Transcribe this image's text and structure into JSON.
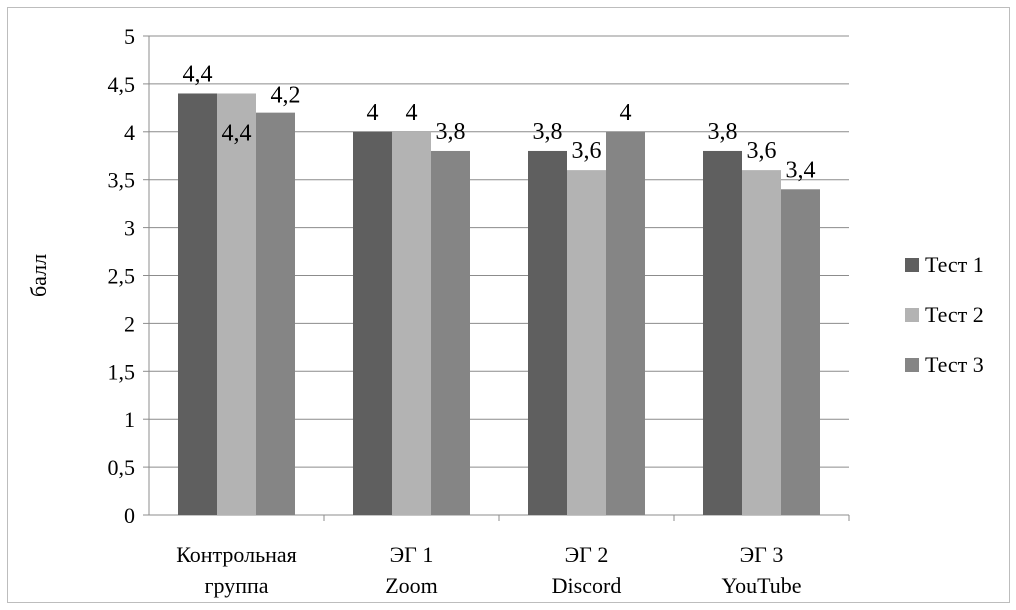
{
  "chart_data": {
    "type": "bar",
    "title": "",
    "xlabel": "",
    "ylabel": "балл",
    "ylim": [
      0,
      5
    ],
    "y_ticks": [
      "0",
      "0,5",
      "1",
      "1,5",
      "2",
      "2,5",
      "3",
      "3,5",
      "4",
      "4,5",
      "5"
    ],
    "grid": true,
    "legend_position": "right",
    "categories": [
      [
        "Контрольная",
        "группа"
      ],
      [
        "ЭГ 1",
        "Zoom"
      ],
      [
        "ЭГ 2",
        "Discord"
      ],
      [
        "ЭГ 3",
        "YouTube"
      ]
    ],
    "series": [
      {
        "name": "Тест 1",
        "color": "#5f5f5f",
        "values": [
          4.4,
          4.0,
          3.8,
          3.8
        ],
        "labels": [
          "4,4",
          "4",
          "3,8",
          "3,8"
        ]
      },
      {
        "name": "Тест 2",
        "color": "#b3b3b3",
        "values": [
          4.4,
          4.0,
          3.6,
          3.6
        ],
        "labels": [
          "4,4",
          "4",
          "3,6",
          "3,6"
        ]
      },
      {
        "name": "Тест 3",
        "color": "#858585",
        "values": [
          4.2,
          3.8,
          4.0,
          3.4
        ],
        "labels": [
          "4,2",
          "3,8",
          "4",
          "3,4"
        ]
      }
    ]
  }
}
